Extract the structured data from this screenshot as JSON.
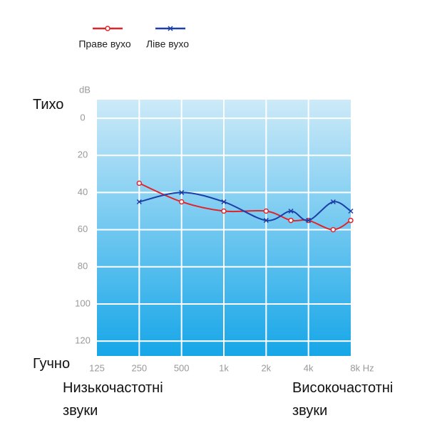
{
  "chart_data": {
    "type": "line",
    "ylabel": "dB",
    "x": [
      250,
      500,
      1000,
      2000,
      3000,
      4000,
      6000,
      8000
    ],
    "series": [
      {
        "name": "Праве вухо",
        "color": "#e0242b",
        "marker": "circle",
        "values": [
          35,
          45,
          50,
          50,
          55,
          55,
          60,
          55
        ]
      },
      {
        "name": "Ліве вухо",
        "color": "#1c3fa8",
        "marker": "x",
        "values": [
          45,
          40,
          45,
          55,
          50,
          55,
          45,
          50
        ]
      }
    ],
    "xlog": true,
    "xlim": [
      125,
      8000
    ],
    "xticks": [
      125,
      250,
      500,
      {
        "value": 1000,
        "label": "1k"
      },
      {
        "value": 2000,
        "label": "2k"
      },
      {
        "value": 4000,
        "label": "4k"
      },
      {
        "value": 8000,
        "label": "8k Hz"
      }
    ],
    "ylim": [
      -10,
      128
    ],
    "yinverted": true,
    "yticks": [
      0,
      20,
      40,
      60,
      80,
      100,
      120
    ],
    "grid": true,
    "annotations": [
      "Тихо",
      "Гучно",
      "Низькочастотні звуки",
      "Високочастотні звуки"
    ]
  }
}
